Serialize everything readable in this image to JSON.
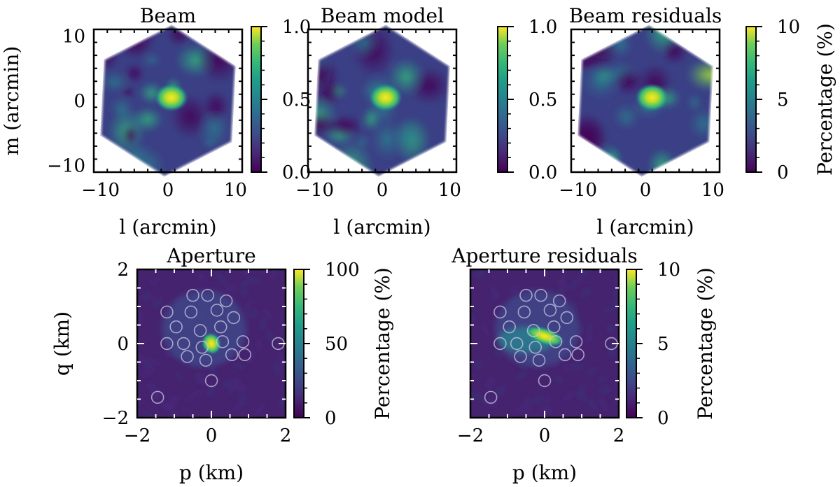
{
  "chart_data": [
    {
      "type": "heatmap",
      "title": "Beam",
      "xlabel": "l (arcmin)",
      "ylabel": "m (arcmin)",
      "xlim": [
        -11,
        11
      ],
      "ylim": [
        -11,
        11
      ],
      "xticks": [
        -10,
        0,
        10
      ],
      "yticks": [
        -10,
        0,
        10
      ],
      "xtick_labels": [
        "−10",
        "0",
        "10"
      ],
      "ytick_labels": [
        "−10",
        "0",
        "10"
      ],
      "colorbar": {
        "range": [
          0,
          1
        ],
        "ticks": [
          0,
          0.5,
          1
        ],
        "tick_labels": [
          "0.0",
          "0.5",
          "1.0"
        ],
        "label": ""
      },
      "peak": {
        "x": 0.5,
        "y": 0.5,
        "value": 1.0
      }
    },
    {
      "type": "heatmap",
      "title": "Beam model",
      "xlabel": "l (arcmin)",
      "ylabel": "",
      "xlim": [
        -11,
        11
      ],
      "ylim": [
        -11,
        11
      ],
      "xticks": [
        -10,
        0,
        10
      ],
      "yticks": [
        -10,
        0,
        10
      ],
      "xtick_labels": [
        "−10",
        "0",
        "10"
      ],
      "ytick_labels": [],
      "colorbar": {
        "range": [
          0,
          1
        ],
        "ticks": [
          0,
          0.5,
          1
        ],
        "tick_labels": [
          "0.0",
          "0.5",
          "1.0"
        ],
        "label": ""
      },
      "peak": {
        "x": 0.5,
        "y": 0.5,
        "value": 1.0
      }
    },
    {
      "type": "heatmap",
      "title": "Beam residuals",
      "xlabel": "l (arcmin)",
      "ylabel": "",
      "xlim": [
        -11,
        11
      ],
      "ylim": [
        -11,
        11
      ],
      "xticks": [
        -10,
        0,
        10
      ],
      "yticks": [
        -10,
        0,
        10
      ],
      "xtick_labels": [
        "−10",
        "0",
        "10"
      ],
      "ytick_labels": [],
      "colorbar": {
        "range": [
          0,
          10
        ],
        "ticks": [
          0,
          5,
          10
        ],
        "tick_labels": [
          "0",
          "5",
          "10"
        ],
        "label": "Percentage (%)"
      },
      "peak": {
        "x": 1.0,
        "y": 0.5,
        "value": 10
      }
    },
    {
      "type": "heatmap",
      "title": "Aperture",
      "xlabel": "p (km)",
      "ylabel": "q (km)",
      "xlim": [
        -2,
        2
      ],
      "ylim": [
        -2,
        2
      ],
      "xticks": [
        -2,
        0,
        2
      ],
      "yticks": [
        -2,
        0,
        2
      ],
      "xtick_labels": [
        "−2",
        "0",
        "2"
      ],
      "ytick_labels": [
        "−2",
        "0",
        "2"
      ],
      "colorbar": {
        "range": [
          0,
          100
        ],
        "ticks": [
          0,
          50,
          100
        ],
        "tick_labels": [
          "0",
          "50",
          "100"
        ],
        "label": "Percentage (%)"
      },
      "peak": {
        "x": 0.0,
        "y": 0.0,
        "value": 100
      },
      "stations_km": [
        [
          -0.5,
          1.3
        ],
        [
          -0.1,
          1.3
        ],
        [
          0.4,
          1.15
        ],
        [
          -1.2,
          0.85
        ],
        [
          -0.55,
          0.85
        ],
        [
          0.15,
          0.9
        ],
        [
          0.6,
          0.7
        ],
        [
          -0.95,
          0.45
        ],
        [
          -0.3,
          0.35
        ],
        [
          0.25,
          0.45
        ],
        [
          -1.2,
          0.0
        ],
        [
          -0.75,
          0.0
        ],
        [
          -0.25,
          -0.1
        ],
        [
          0.3,
          0.05
        ],
        [
          0.85,
          0.05
        ],
        [
          -0.65,
          -0.35
        ],
        [
          -0.15,
          -0.45
        ],
        [
          0.55,
          -0.3
        ],
        [
          0.9,
          -0.3
        ],
        [
          0.0,
          -1.0
        ],
        [
          -1.45,
          -1.45
        ],
        [
          1.8,
          0.0
        ]
      ]
    },
    {
      "type": "heatmap",
      "title": "Aperture residuals",
      "xlabel": "p (km)",
      "ylabel": "",
      "xlim": [
        -2,
        2
      ],
      "ylim": [
        -2,
        2
      ],
      "xticks": [
        -2,
        0,
        2
      ],
      "yticks": [
        -2,
        0,
        2
      ],
      "xtick_labels": [
        "−2",
        "0",
        "2"
      ],
      "ytick_labels": [],
      "colorbar": {
        "range": [
          0,
          10
        ],
        "ticks": [
          0,
          5,
          10
        ],
        "tick_labels": [
          "0",
          "5",
          "10"
        ],
        "label": "Percentage (%)"
      },
      "peak": {
        "x": 0.0,
        "y": 0.2,
        "value": 10
      },
      "stations_km": [
        [
          -0.5,
          1.3
        ],
        [
          -0.1,
          1.3
        ],
        [
          0.4,
          1.15
        ],
        [
          -1.2,
          0.85
        ],
        [
          -0.55,
          0.85
        ],
        [
          0.15,
          0.9
        ],
        [
          0.6,
          0.7
        ],
        [
          -0.95,
          0.45
        ],
        [
          -0.3,
          0.35
        ],
        [
          0.25,
          0.45
        ],
        [
          -1.2,
          0.0
        ],
        [
          -0.75,
          0.0
        ],
        [
          -0.25,
          -0.1
        ],
        [
          0.3,
          0.05
        ],
        [
          0.85,
          0.05
        ],
        [
          -0.65,
          -0.35
        ],
        [
          -0.15,
          -0.45
        ],
        [
          0.55,
          -0.3
        ],
        [
          0.9,
          -0.3
        ],
        [
          0.0,
          -1.0
        ],
        [
          -1.45,
          -1.45
        ],
        [
          1.8,
          0.0
        ]
      ]
    }
  ],
  "colors": {
    "viridis_low": "#440154",
    "viridis_dark": "#3b1a6b",
    "viridis_mid": "#21918c",
    "viridis_green": "#5ec962",
    "viridis_high": "#fde725",
    "background": "#ffffff",
    "station_ring": "#c8c8e6"
  }
}
